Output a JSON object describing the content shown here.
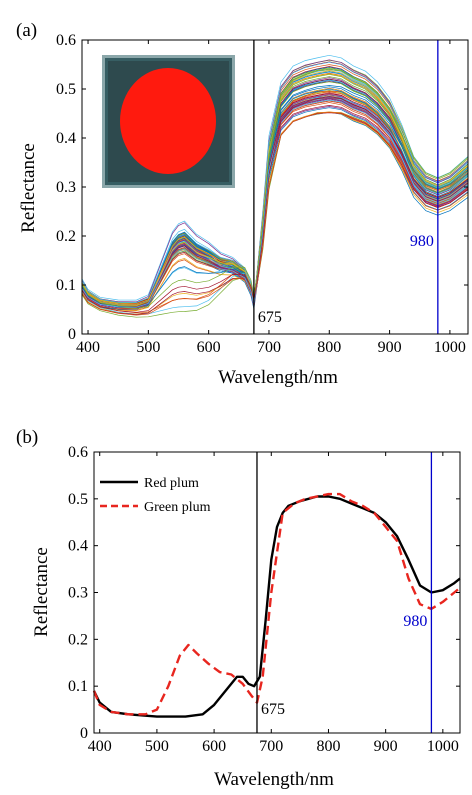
{
  "chart_data": [
    {
      "panel_label": "(a)",
      "type": "line",
      "xlabel": "Wavelength/nm",
      "ylabel": "Reflectance",
      "xlim": [
        390,
        1030
      ],
      "ylim": [
        0,
        0.6
      ],
      "xticks": [
        400,
        500,
        600,
        700,
        800,
        900,
        1000
      ],
      "yticks": [
        0,
        0.1,
        0.2,
        0.3,
        0.4,
        0.5,
        0.6
      ],
      "grid": false,
      "inset_image": "red elliptical fruit mask on dark teal background",
      "markers": [
        {
          "x": 675,
          "label": "675",
          "color": "#000000"
        },
        {
          "x": 980,
          "label": "980",
          "color": "#0000cc"
        }
      ],
      "base_profiles": {
        "x": [
          390,
          400,
          420,
          450,
          480,
          500,
          520,
          540,
          550,
          560,
          580,
          600,
          620,
          640,
          660,
          670,
          675,
          680,
          690,
          700,
          720,
          740,
          760,
          780,
          800,
          820,
          840,
          860,
          880,
          900,
          920,
          940,
          960,
          980,
          1000,
          1030
        ],
        "green_plum": [
          0.1,
          0.08,
          0.065,
          0.06,
          0.06,
          0.07,
          0.13,
          0.19,
          0.205,
          0.21,
          0.185,
          0.17,
          0.15,
          0.14,
          0.12,
          0.09,
          0.06,
          0.11,
          0.22,
          0.36,
          0.46,
          0.49,
          0.5,
          0.505,
          0.51,
          0.505,
          0.49,
          0.48,
          0.46,
          0.43,
          0.38,
          0.32,
          0.29,
          0.28,
          0.29,
          0.32
        ],
        "red_plum": [
          0.09,
          0.07,
          0.055,
          0.045,
          0.04,
          0.04,
          0.04,
          0.04,
          0.04,
          0.04,
          0.045,
          0.06,
          0.09,
          0.12,
          0.13,
          0.11,
          0.08,
          0.11,
          0.2,
          0.33,
          0.45,
          0.48,
          0.49,
          0.5,
          0.5,
          0.5,
          0.49,
          0.48,
          0.46,
          0.43,
          0.39,
          0.34,
          0.31,
          0.3,
          0.31,
          0.34
        ]
      }
    },
    {
      "panel_label": "(b)",
      "type": "line",
      "xlabel": "Wavelength/nm",
      "ylabel": "Reflectance",
      "xlim": [
        390,
        1030
      ],
      "ylim": [
        0,
        0.6
      ],
      "xticks": [
        400,
        500,
        600,
        700,
        800,
        900,
        1000
      ],
      "yticks": [
        0,
        0.1,
        0.2,
        0.3,
        0.4,
        0.5,
        0.6
      ],
      "grid": false,
      "legend_position": "top-left",
      "markers": [
        {
          "x": 675,
          "label": "675",
          "color": "#000000"
        },
        {
          "x": 980,
          "label": "980",
          "color": "#0000cc"
        }
      ],
      "series": [
        {
          "name": "Red plum",
          "color": "#000000",
          "dash": "solid",
          "x": [
            390,
            400,
            420,
            450,
            500,
            550,
            580,
            600,
            620,
            640,
            650,
            660,
            670,
            680,
            690,
            700,
            710,
            720,
            730,
            750,
            780,
            800,
            820,
            840,
            860,
            880,
            900,
            920,
            940,
            960,
            980,
            1000,
            1020,
            1030
          ],
          "y": [
            0.09,
            0.065,
            0.045,
            0.04,
            0.035,
            0.035,
            0.04,
            0.06,
            0.09,
            0.12,
            0.12,
            0.105,
            0.1,
            0.12,
            0.24,
            0.37,
            0.44,
            0.47,
            0.485,
            0.495,
            0.505,
            0.505,
            0.5,
            0.49,
            0.48,
            0.47,
            0.45,
            0.42,
            0.37,
            0.315,
            0.3,
            0.305,
            0.32,
            0.33
          ]
        },
        {
          "name": "Green plum",
          "color": "#e8261f",
          "dash": "dashed",
          "x": [
            390,
            400,
            420,
            450,
            480,
            500,
            520,
            540,
            555,
            570,
            590,
            610,
            630,
            650,
            665,
            675,
            685,
            700,
            720,
            740,
            760,
            780,
            800,
            820,
            840,
            860,
            880,
            900,
            920,
            940,
            960,
            980,
            1000,
            1020,
            1030
          ],
          "y": [
            0.09,
            0.06,
            0.045,
            0.04,
            0.04,
            0.05,
            0.1,
            0.165,
            0.188,
            0.17,
            0.148,
            0.13,
            0.125,
            0.105,
            0.08,
            0.065,
            0.12,
            0.3,
            0.47,
            0.49,
            0.5,
            0.505,
            0.51,
            0.51,
            0.495,
            0.485,
            0.47,
            0.44,
            0.41,
            0.33,
            0.275,
            0.265,
            0.28,
            0.3,
            0.31
          ]
        }
      ]
    }
  ]
}
